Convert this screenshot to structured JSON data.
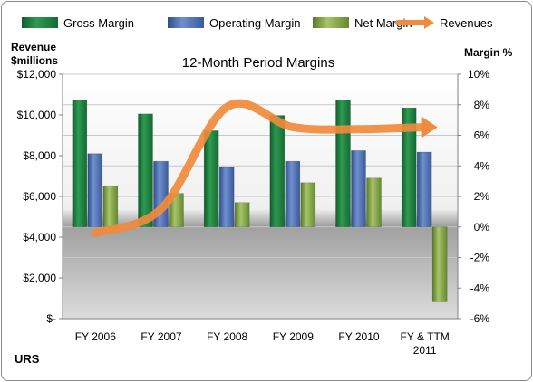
{
  "chart_data": {
    "type": "bar",
    "title": "12-Month Period Margins",
    "company": "URS",
    "categories": [
      "FY 2006",
      "FY 2007",
      "FY 2008",
      "FY 2009",
      "FY 2010",
      "FY & TTM 2011"
    ],
    "left_axis": {
      "label_line1": "Revenue",
      "label_line2": "$millions",
      "range": [
        0,
        12000
      ],
      "ticks": [
        "$-",
        "$2,000",
        "$4,000",
        "$6,000",
        "$8,000",
        "$10,000",
        "$12,000"
      ]
    },
    "right_axis": {
      "label": "Margin %",
      "range": [
        -6,
        10
      ],
      "ticks": [
        "-6%",
        "-4%",
        "-2%",
        "0%",
        "2%",
        "4%",
        "6%",
        "8%",
        "10%"
      ]
    },
    "series": [
      {
        "name": "Gross Margin",
        "axis": "right",
        "color": "#1e7f3e",
        "values": [
          8.3,
          7.4,
          6.3,
          7.3,
          8.3,
          7.8
        ]
      },
      {
        "name": "Operating Margin",
        "axis": "right",
        "color": "#4a6fb0",
        "values": [
          4.8,
          4.3,
          3.9,
          4.3,
          5.0,
          4.9
        ]
      },
      {
        "name": "Net Margin",
        "axis": "right",
        "color": "#7a9a3a",
        "values": [
          2.7,
          2.2,
          1.6,
          2.9,
          3.2,
          -4.9
        ]
      },
      {
        "name": "Revenues",
        "axis": "left",
        "type": "line",
        "color": "#f08a3c",
        "values": [
          4200,
          5400,
          10400,
          9400,
          9300,
          9400
        ]
      }
    ]
  }
}
